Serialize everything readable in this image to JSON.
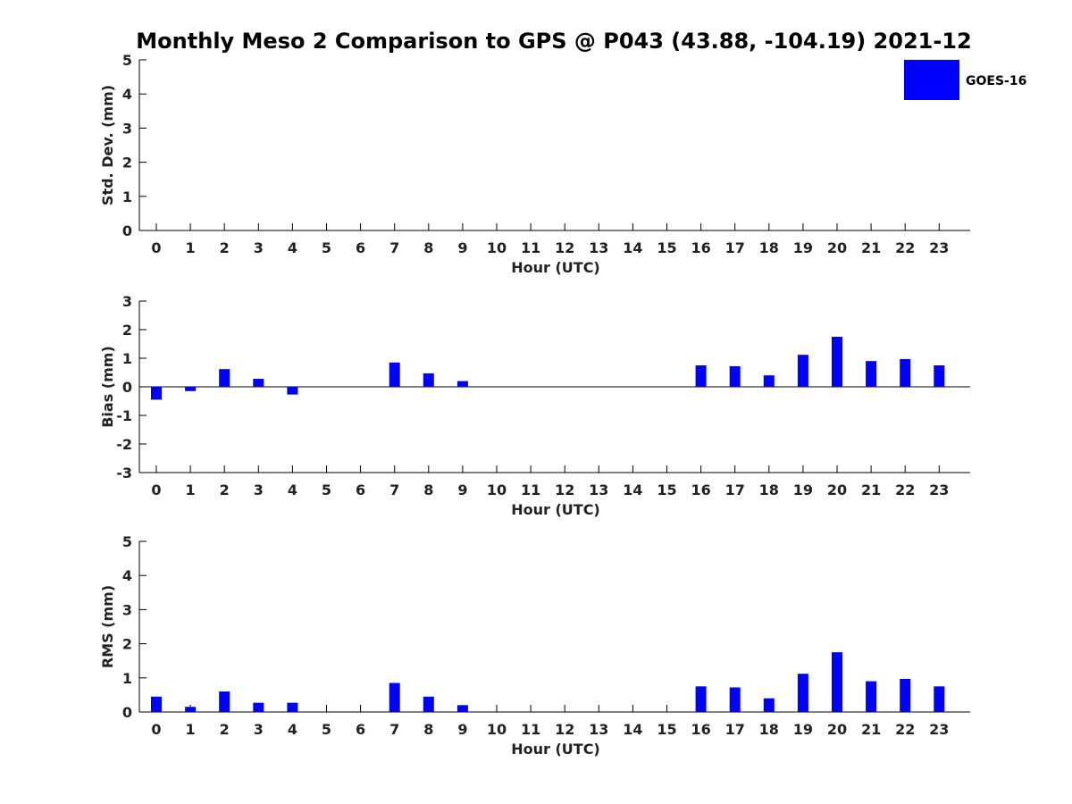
{
  "title": "Monthly Meso 2 Comparison to GPS @ P043 (43.88, -104.19) 2021-12",
  "legend": {
    "label": "GOES-16",
    "color": "#0000ff"
  },
  "chart_data": [
    {
      "type": "bar",
      "series_name": "GOES-16",
      "xlabel": "Hour (UTC)",
      "ylabel": "Std. Dev. (mm)",
      "ylim": [
        0,
        5
      ],
      "yticks": [
        0,
        1,
        2,
        3,
        4,
        5
      ],
      "categories": [
        "0",
        "1",
        "2",
        "3",
        "4",
        "5",
        "6",
        "7",
        "8",
        "9",
        "10",
        "11",
        "12",
        "13",
        "14",
        "15",
        "16",
        "17",
        "18",
        "19",
        "20",
        "21",
        "22",
        "23"
      ],
      "values": [
        null,
        null,
        null,
        null,
        null,
        null,
        null,
        null,
        null,
        null,
        null,
        null,
        null,
        null,
        null,
        null,
        null,
        null,
        null,
        null,
        null,
        null,
        null,
        null
      ],
      "grid": false,
      "legend_position": "top-right"
    },
    {
      "type": "bar",
      "series_name": "GOES-16",
      "xlabel": "Hour (UTC)",
      "ylabel": "Bias (mm)",
      "ylim": [
        -3,
        3
      ],
      "yticks": [
        -3,
        -2,
        -1,
        0,
        1,
        2,
        3
      ],
      "zero_line": true,
      "categories": [
        "0",
        "1",
        "2",
        "3",
        "4",
        "5",
        "6",
        "7",
        "8",
        "9",
        "10",
        "11",
        "12",
        "13",
        "14",
        "15",
        "16",
        "17",
        "18",
        "19",
        "20",
        "21",
        "22",
        "23"
      ],
      "values": [
        -0.45,
        -0.15,
        0.62,
        0.28,
        -0.27,
        null,
        null,
        0.85,
        0.47,
        0.2,
        null,
        null,
        null,
        null,
        null,
        null,
        0.75,
        0.72,
        0.4,
        1.12,
        1.75,
        0.9,
        0.97,
        0.75
      ],
      "grid": false
    },
    {
      "type": "bar",
      "series_name": "GOES-16",
      "xlabel": "Hour (UTC)",
      "ylabel": "RMS (mm)",
      "ylim": [
        0,
        5
      ],
      "yticks": [
        0,
        1,
        2,
        3,
        4,
        5
      ],
      "categories": [
        "0",
        "1",
        "2",
        "3",
        "4",
        "5",
        "6",
        "7",
        "8",
        "9",
        "10",
        "11",
        "12",
        "13",
        "14",
        "15",
        "16",
        "17",
        "18",
        "19",
        "20",
        "21",
        "22",
        "23"
      ],
      "values": [
        0.45,
        0.15,
        0.6,
        0.27,
        0.27,
        null,
        null,
        0.85,
        0.45,
        0.2,
        null,
        null,
        null,
        null,
        null,
        null,
        0.75,
        0.72,
        0.4,
        1.12,
        1.75,
        0.9,
        0.97,
        0.75
      ],
      "grid": false
    }
  ]
}
